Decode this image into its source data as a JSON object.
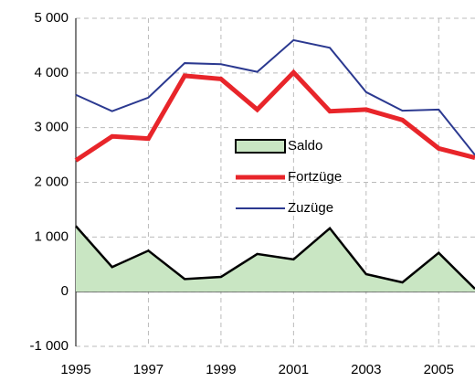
{
  "chart_data": {
    "type": "line",
    "x": [
      1995,
      1996,
      1997,
      1998,
      1999,
      2000,
      2001,
      2002,
      2003,
      2004,
      2005,
      2006
    ],
    "series": [
      {
        "name": "Saldo",
        "color": "#c9e6c3",
        "kind": "area",
        "values": [
          1200,
          450,
          750,
          230,
          270,
          690,
          590,
          1160,
          320,
          170,
          710,
          50
        ]
      },
      {
        "name": "Fortzüge",
        "color": "#e8252a",
        "values": [
          2400,
          2840,
          2800,
          3950,
          3890,
          3330,
          4010,
          3300,
          3330,
          3140,
          2620,
          2450
        ]
      },
      {
        "name": "Zuzüge",
        "color": "#2b3990",
        "values": [
          3600,
          3300,
          3550,
          4180,
          4160,
          4020,
          4600,
          4460,
          3650,
          3310,
          3330,
          2500
        ]
      }
    ],
    "xlim": [
      1995,
      2006
    ],
    "xticks": [
      1995,
      1997,
      1999,
      2001,
      2003,
      2005
    ],
    "ylim": [
      -1000,
      5000
    ],
    "yticks": [
      {
        "value": -1000,
        "label": "-1 000"
      },
      0,
      {
        "value": 1000,
        "label": "1 000"
      },
      {
        "value": 2000,
        "label": "2 000"
      },
      {
        "value": 3000,
        "label": "3 000"
      },
      {
        "value": 4000,
        "label": "4 000"
      },
      {
        "value": 5000,
        "label": "5 000"
      }
    ],
    "grid": true
  }
}
